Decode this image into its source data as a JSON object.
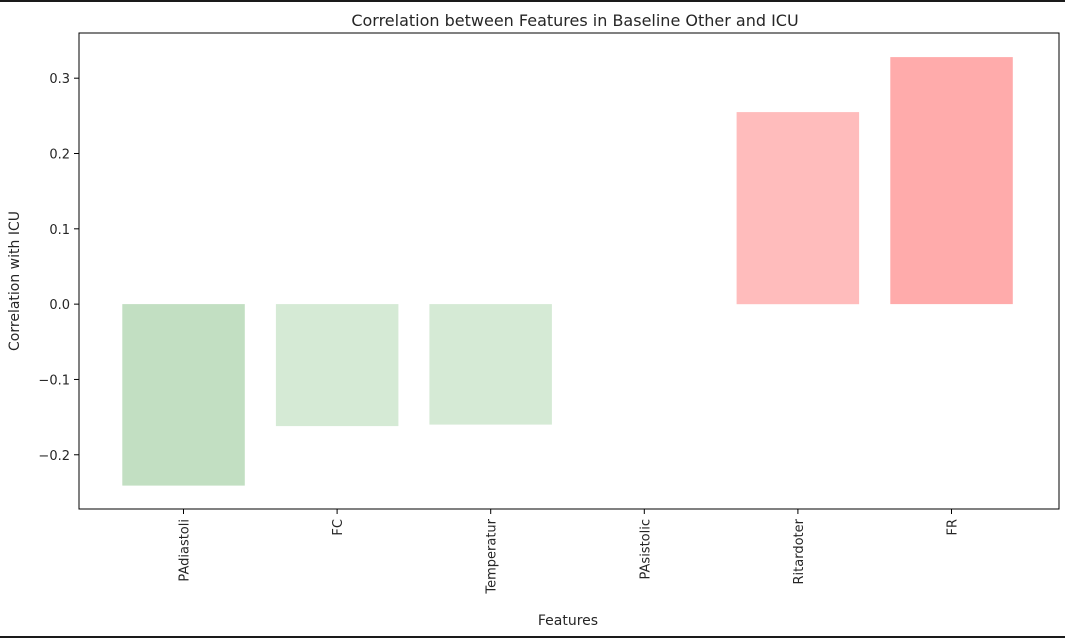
{
  "chart_data": {
    "type": "bar",
    "title": "Correlation between Features in Baseline Other and ICU",
    "xlabel": "Features",
    "ylabel": "Correlation with ICU",
    "categories": [
      "PAdiastoli",
      "FC",
      "Temperatur",
      "PAsistolic",
      "Ritardoter",
      "FR"
    ],
    "values": [
      -0.241,
      -0.162,
      -0.16,
      0.0,
      0.255,
      0.328
    ],
    "bar_colors": [
      "#c2dfc2",
      "#d5ead5",
      "#d5ead5",
      "#ffffff",
      "#ffbcbc",
      "#ffabab"
    ],
    "ylim": [
      -0.272,
      0.36
    ],
    "yticks": [
      0.3,
      0.2,
      0.1,
      0.0,
      -0.1,
      -0.2
    ],
    "ytick_labels": [
      "0.3",
      "0.2",
      "0.1",
      "0.0",
      "−0.1",
      "−0.2"
    ],
    "grid": false,
    "legend": "none"
  }
}
